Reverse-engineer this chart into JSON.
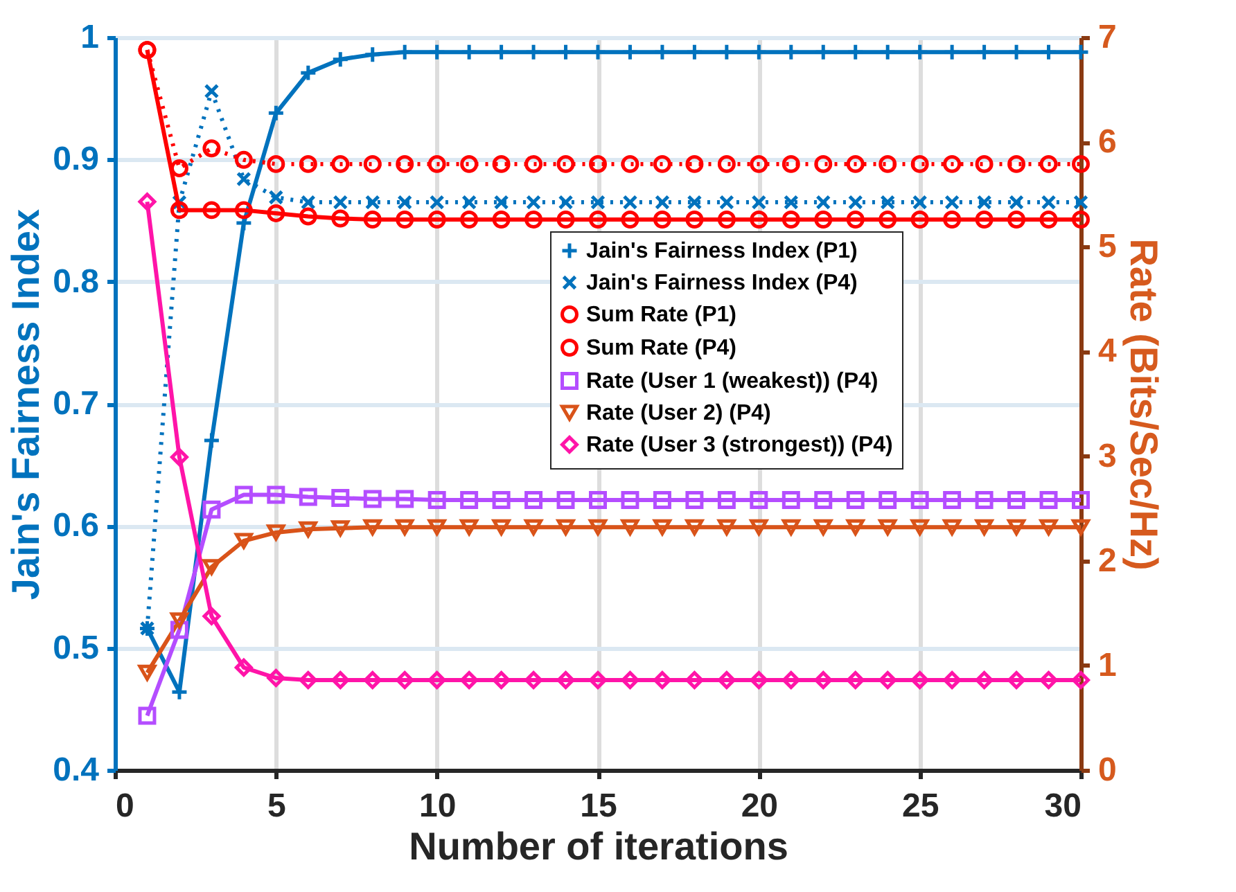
{
  "chart_data": {
    "type": "line",
    "xlabel": "Number of iterations",
    "ylabel": "Jain's Fairness Index",
    "y2label": "Rate (Bits/Sec/Hz)",
    "x": [
      1,
      2,
      3,
      4,
      5,
      6,
      7,
      8,
      9,
      10,
      11,
      12,
      13,
      14,
      15,
      16,
      17,
      18,
      19,
      20,
      21,
      22,
      23,
      24,
      25,
      26,
      27,
      28,
      29,
      30
    ],
    "xlim": [
      0,
      30
    ],
    "xticks": [
      0,
      5,
      10,
      15,
      20,
      25,
      30
    ],
    "ylim": [
      0.4,
      1
    ],
    "yticks": [
      0.4,
      0.5,
      0.6,
      0.7,
      0.8,
      0.9,
      1
    ],
    "y2lim": [
      0,
      7
    ],
    "y2ticks": [
      0,
      1,
      2,
      3,
      4,
      5,
      6,
      7
    ],
    "grid": true,
    "legend": "right",
    "series": [
      {
        "name": "Jain's Fairness Index (P1)",
        "color": "#0072bd",
        "line_style": "solid",
        "marker": "plus",
        "values": [
          0.516,
          0.464,
          0.67,
          0.848,
          0.938,
          0.971,
          0.982,
          0.986,
          0.988,
          0.988,
          0.988,
          0.988,
          0.988,
          0.988,
          0.988,
          0.988,
          0.988,
          0.988,
          0.988,
          0.988,
          0.988,
          0.988,
          0.988,
          0.988,
          0.988,
          0.988,
          0.988,
          0.988,
          0.988,
          0.988
        ]
      },
      {
        "name": "Jain's Fairness Index (P4)",
        "color": "#0072bd",
        "line_style": "dotted",
        "marker": "cross",
        "values": [
          0.516,
          0.865,
          0.956,
          0.884,
          0.869,
          0.865,
          0.865,
          0.865,
          0.865,
          0.865,
          0.865,
          0.865,
          0.865,
          0.865,
          0.865,
          0.865,
          0.865,
          0.865,
          0.865,
          0.865,
          0.865,
          0.865,
          0.865,
          0.865,
          0.865,
          0.865,
          0.865,
          0.865,
          0.865,
          0.865
        ]
      },
      {
        "name": "Sum Rate (P1)",
        "color": "#ff0000",
        "line_style": "solid",
        "marker": "circle",
        "axis": "y2",
        "values": [
          6.88,
          5.35,
          5.35,
          5.35,
          5.32,
          5.29,
          5.27,
          5.26,
          5.26,
          5.26,
          5.26,
          5.26,
          5.26,
          5.26,
          5.26,
          5.26,
          5.26,
          5.26,
          5.26,
          5.26,
          5.26,
          5.26,
          5.26,
          5.26,
          5.26,
          5.26,
          5.26,
          5.26,
          5.26,
          5.26
        ]
      },
      {
        "name": "Sum Rate (P4)",
        "color": "#ff0000",
        "line_style": "dotted",
        "marker": "circle",
        "axis": "y2",
        "values": [
          6.88,
          5.75,
          5.94,
          5.83,
          5.79,
          5.79,
          5.79,
          5.79,
          5.79,
          5.79,
          5.79,
          5.79,
          5.79,
          5.79,
          5.79,
          5.79,
          5.79,
          5.79,
          5.79,
          5.79,
          5.79,
          5.79,
          5.79,
          5.79,
          5.79,
          5.79,
          5.79,
          5.79,
          5.79,
          5.79
        ]
      },
      {
        "name": "Rate (User 1 (weakest)) (P4)",
        "color": "#b44dff",
        "line_style": "solid",
        "marker": "square",
        "axis": "y2",
        "values": [
          0.52,
          1.34,
          2.49,
          2.63,
          2.63,
          2.61,
          2.6,
          2.59,
          2.59,
          2.58,
          2.58,
          2.58,
          2.58,
          2.58,
          2.58,
          2.58,
          2.58,
          2.58,
          2.58,
          2.58,
          2.58,
          2.58,
          2.58,
          2.58,
          2.58,
          2.58,
          2.58,
          2.58,
          2.58,
          2.58
        ]
      },
      {
        "name": "Rate (User 2) (P4)",
        "color": "#d95319",
        "line_style": "solid",
        "marker": "triangle-down",
        "axis": "y2",
        "values": [
          0.93,
          1.43,
          1.94,
          2.19,
          2.27,
          2.3,
          2.31,
          2.32,
          2.32,
          2.32,
          2.32,
          2.32,
          2.32,
          2.32,
          2.32,
          2.32,
          2.32,
          2.32,
          2.32,
          2.32,
          2.32,
          2.32,
          2.32,
          2.32,
          2.32,
          2.32,
          2.32,
          2.32,
          2.32,
          2.32
        ]
      },
      {
        "name": "Rate (User 3 (strongest)) (P4)",
        "color": "#ff14a8",
        "line_style": "solid",
        "marker": "diamond",
        "axis": "y2",
        "values": [
          5.43,
          2.99,
          1.47,
          0.98,
          0.88,
          0.86,
          0.86,
          0.86,
          0.86,
          0.86,
          0.86,
          0.86,
          0.86,
          0.86,
          0.86,
          0.86,
          0.86,
          0.86,
          0.86,
          0.86,
          0.86,
          0.86,
          0.86,
          0.86,
          0.86,
          0.86,
          0.86,
          0.86,
          0.86,
          0.86
        ]
      }
    ]
  }
}
